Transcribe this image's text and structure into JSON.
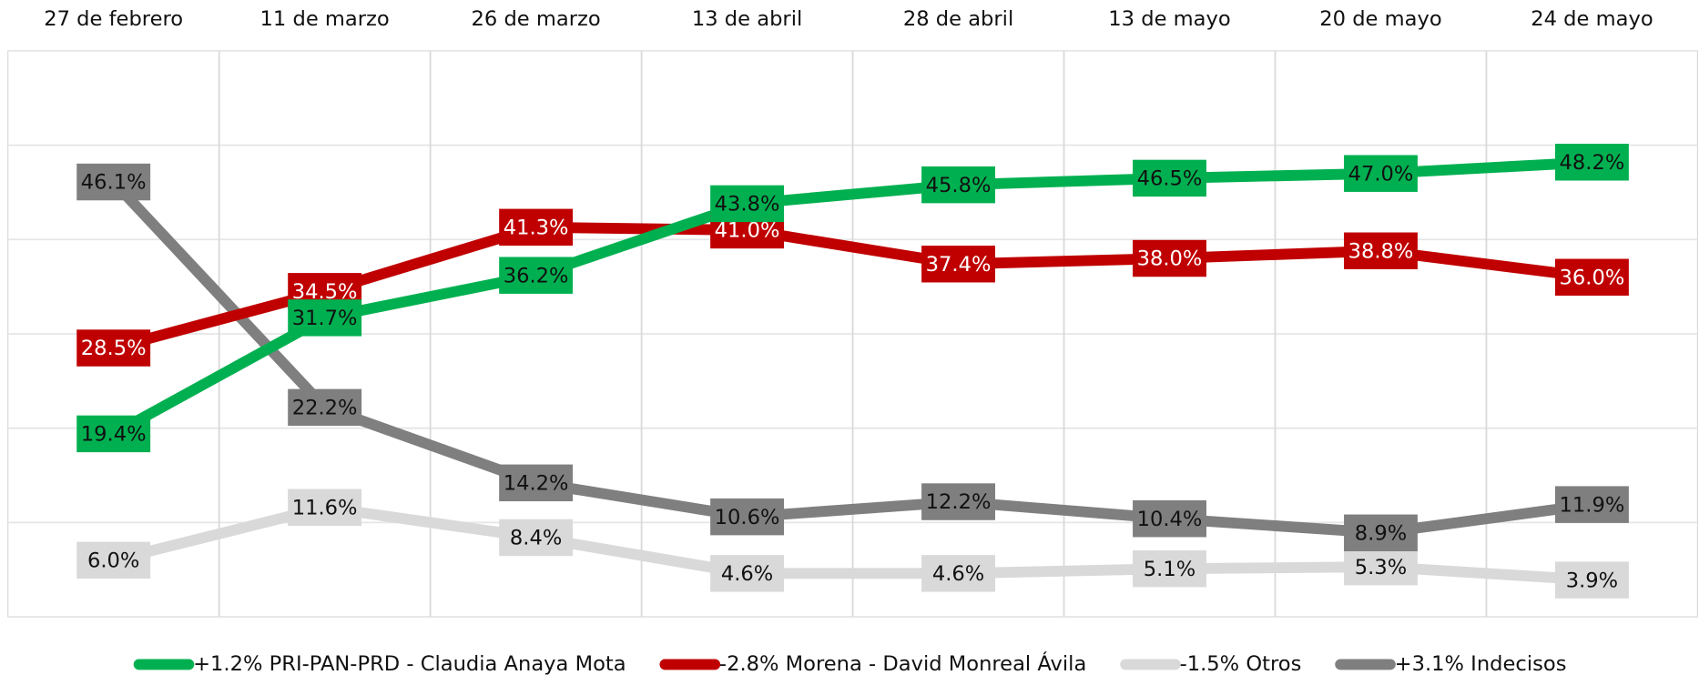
{
  "chart_data": {
    "type": "line",
    "categories": [
      "27 de febrero",
      "11 de marzo",
      "26 de marzo",
      "13 de abril",
      "28 de abril",
      "13 de mayo",
      "20 de mayo",
      "24 de mayo"
    ],
    "ylim": [
      0,
      60
    ],
    "yticks": [
      0,
      10,
      20,
      30,
      40,
      50,
      60
    ],
    "grid": true,
    "legend": "bottom",
    "series": [
      {
        "name": "+1.2% PRI-PAN-PRD - Claudia Anaya Mota",
        "color": "#00b050",
        "label_text_color": "#111111",
        "values": [
          19.4,
          31.7,
          36.2,
          43.8,
          45.8,
          46.5,
          47.0,
          48.2
        ],
        "value_labels": [
          "19.4%",
          "31.7%",
          "36.2%",
          "43.8%",
          "45.8%",
          "46.5%",
          "47.0%",
          "48.2%"
        ]
      },
      {
        "name": "-2.8% Morena - David Monreal Ávila",
        "color": "#c00000",
        "label_text_color": "#ffffff",
        "values": [
          28.5,
          34.5,
          41.3,
          41.0,
          37.4,
          38.0,
          38.8,
          36.0
        ],
        "value_labels": [
          "28.5%",
          "34.5%",
          "41.3%",
          "41.0%",
          "37.4%",
          "38.0%",
          "38.8%",
          "36.0%"
        ]
      },
      {
        "name": "-1.5% Otros",
        "color": "#d9d9d9",
        "label_text_color": "#111111",
        "values": [
          6.0,
          11.6,
          8.4,
          4.6,
          4.6,
          5.1,
          5.3,
          3.9
        ],
        "value_labels": [
          "6.0%",
          "11.6%",
          "8.4%",
          "4.6%",
          "4.6%",
          "5.1%",
          "5.3%",
          "3.9%"
        ]
      },
      {
        "name": "+3.1% Indecisos",
        "color": "#7f7f7f",
        "label_text_color": "#111111",
        "values": [
          46.1,
          22.2,
          14.2,
          10.6,
          12.2,
          10.4,
          8.9,
          11.9
        ],
        "value_labels": [
          "46.1%",
          "22.2%",
          "14.2%",
          "10.6%",
          "12.2%",
          "10.4%",
          "8.9%",
          "11.9%"
        ]
      }
    ]
  }
}
